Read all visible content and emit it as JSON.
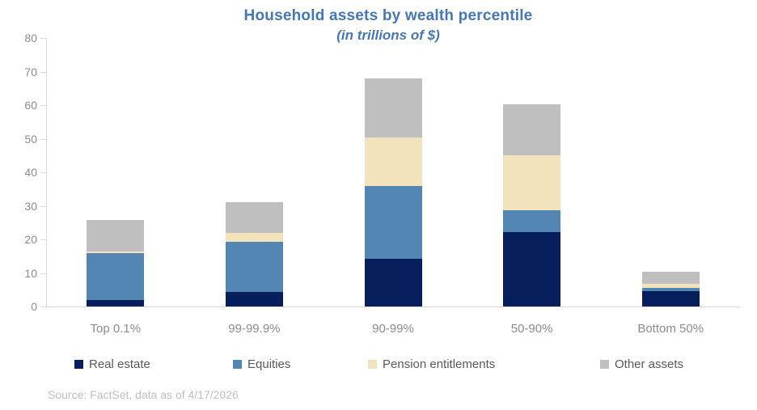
{
  "title": "Household assets by wealth percentile",
  "subtitle": "(in trillions of $)",
  "source": "Source: FactSet, data as of 4/17/2026",
  "colors": {
    "title_blue": "#4577b7",
    "axis_gray": "#d9d9d9",
    "tick_label_gray": "#8c8c8c",
    "legend_text_gray": "#595959",
    "source_gray": "#bfbfbf"
  },
  "chart_data": {
    "type": "bar",
    "stacked": true,
    "title": "Household assets by wealth percentile",
    "subtitle": "(in trillions of $)",
    "xlabel": "",
    "ylabel": "",
    "ylim": [
      0,
      80
    ],
    "yticks": [
      0,
      10,
      20,
      30,
      40,
      50,
      60,
      70,
      80
    ],
    "grid": false,
    "legend_position": "bottom",
    "categories": [
      "Top 0.1%",
      "99-99.9%",
      "90-99%",
      "50-90%",
      "Bottom 50%"
    ],
    "series": [
      {
        "name": "Real estate",
        "color": "#061f5c",
        "values": [
          2.0,
          4.4,
          14.3,
          22.2,
          4.6
        ]
      },
      {
        "name": "Equities",
        "color": "#5486b4",
        "values": [
          14.0,
          14.9,
          21.6,
          6.5,
          0.9
        ]
      },
      {
        "name": "Pension entitlements",
        "color": "#f2e3bd",
        "values": [
          0.5,
          2.7,
          14.4,
          16.4,
          1.2
        ]
      },
      {
        "name": "Other assets",
        "color": "#bfbfbf",
        "values": [
          9.2,
          9.1,
          17.7,
          15.1,
          3.7
        ]
      }
    ],
    "totals": [
      25.7,
      31.1,
      68.0,
      60.2,
      10.4
    ]
  }
}
